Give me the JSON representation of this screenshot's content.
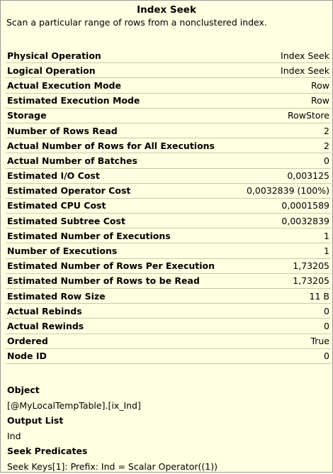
{
  "tooltip": {
    "title": "Index Seek",
    "description": "Scan a particular range of rows from a nonclustered index."
  },
  "properties": [
    {
      "label": "Physical Operation",
      "value": "Index Seek"
    },
    {
      "label": "Logical Operation",
      "value": "Index Seek"
    },
    {
      "label": "Actual Execution Mode",
      "value": "Row"
    },
    {
      "label": "Estimated Execution Mode",
      "value": "Row"
    },
    {
      "label": "Storage",
      "value": "RowStore"
    },
    {
      "label": "Number of Rows Read",
      "value": "2"
    },
    {
      "label": "Actual Number of Rows for All Executions",
      "value": "2"
    },
    {
      "label": "Actual Number of Batches",
      "value": "0"
    },
    {
      "label": "Estimated I/O Cost",
      "value": "0,003125"
    },
    {
      "label": "Estimated Operator Cost",
      "value": "0,0032839 (100%)"
    },
    {
      "label": "Estimated CPU Cost",
      "value": "0,0001589"
    },
    {
      "label": "Estimated Subtree Cost",
      "value": "0,0032839"
    },
    {
      "label": "Estimated Number of Executions",
      "value": "1"
    },
    {
      "label": "Number of Executions",
      "value": "1"
    },
    {
      "label": "Estimated Number of Rows Per Execution",
      "value": "1,73205"
    },
    {
      "label": "Estimated Number of Rows to be Read",
      "value": "1,73205"
    },
    {
      "label": "Estimated Row Size",
      "value": "11 B"
    },
    {
      "label": "Actual Rebinds",
      "value": "0"
    },
    {
      "label": "Actual Rewinds",
      "value": "0"
    },
    {
      "label": "Ordered",
      "value": "True"
    },
    {
      "label": "Node ID",
      "value": "0"
    }
  ],
  "sections": {
    "object": {
      "heading": "Object",
      "value": "[@MyLocalTempTable].[ix_Ind]"
    },
    "output_list": {
      "heading": "Output List",
      "value": "Ind"
    },
    "seek_predicates": {
      "heading": "Seek Predicates",
      "value": "Seek Keys[1]: Prefix: Ind = Scalar Operator((1))"
    }
  }
}
